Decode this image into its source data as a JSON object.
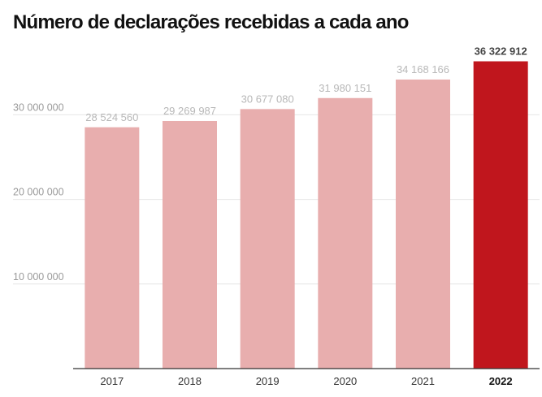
{
  "title": "Número de declarações recebidas a cada ano",
  "chart_data": {
    "type": "bar",
    "title": "Número de declarações recebidas a cada ano",
    "categories": [
      "2017",
      "2018",
      "2019",
      "2020",
      "2021",
      "2022"
    ],
    "values": [
      28524560,
      29269987,
      30677080,
      31980151,
      34168166,
      36322912
    ],
    "value_labels": [
      "28 524 560",
      "29 269 987",
      "30 677 080",
      "31 980 151",
      "34 168 166",
      "36 322 912"
    ],
    "highlight_index": 5,
    "y_ticks": [
      10000000,
      20000000,
      30000000
    ],
    "y_tick_labels": [
      "10 000 000",
      "20 000 000",
      "30 000 000"
    ],
    "ylim": [
      0,
      40000000
    ],
    "grid": true,
    "xlabel": "",
    "ylabel": "",
    "colors": {
      "bar": "#e8aeae",
      "highlight": "#c0161d",
      "grid": "#e6e6e6",
      "axis": "#333333"
    }
  }
}
